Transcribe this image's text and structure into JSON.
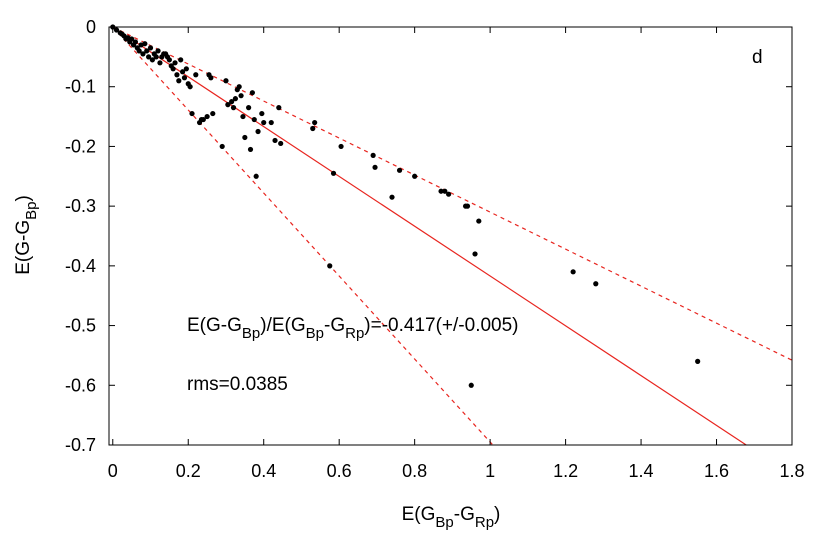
{
  "chart_data": {
    "type": "scatter",
    "panel_label": "d",
    "xlabel": {
      "base": "E(G",
      "sub1": "Bp",
      "mid": "-G",
      "sub2": "Rp",
      "end": ")"
    },
    "ylabel": {
      "base": "E(G-G",
      "sub1": "Bp",
      "end": ")"
    },
    "xlim": [
      -0.01,
      1.8
    ],
    "ylim": [
      -0.7,
      0
    ],
    "x_ticks": [
      0,
      0.2,
      0.4,
      0.6,
      0.8,
      1,
      1.2,
      1.4,
      1.6,
      1.8
    ],
    "y_ticks": [
      0,
      -0.1,
      -0.2,
      -0.3,
      -0.4,
      -0.5,
      -0.6,
      -0.7
    ],
    "grid": false,
    "annotations": {
      "fit": {
        "p1": "E(G-G",
        "s1": "Bp",
        "p2": ")/E(G",
        "s2": "Bp",
        "p3": "-G",
        "s3": "Rp",
        "p4": ")=-0.417(+/-0.005)"
      },
      "rms": "rms=0.0385"
    },
    "lines": [
      {
        "style": "solid",
        "color": "#e8251f",
        "slope": -0.417
      },
      {
        "style": "dashed",
        "color": "#e8251f",
        "slope": -0.31
      },
      {
        "style": "dashed",
        "color": "#e8251f",
        "slope": -0.695
      }
    ],
    "series": [
      {
        "color": "#000000",
        "points": [
          [
            0.0,
            0.0
          ],
          [
            0.01,
            -0.005
          ],
          [
            0.02,
            -0.01
          ],
          [
            0.025,
            -0.012
          ],
          [
            0.03,
            -0.015
          ],
          [
            0.035,
            -0.02
          ],
          [
            0.04,
            -0.018
          ],
          [
            0.045,
            -0.025
          ],
          [
            0.05,
            -0.02
          ],
          [
            0.055,
            -0.03
          ],
          [
            0.06,
            -0.025
          ],
          [
            0.065,
            -0.035
          ],
          [
            0.07,
            -0.04
          ],
          [
            0.075,
            -0.03
          ],
          [
            0.08,
            -0.045
          ],
          [
            0.085,
            -0.028
          ],
          [
            0.09,
            -0.04
          ],
          [
            0.095,
            -0.05
          ],
          [
            0.1,
            -0.035
          ],
          [
            0.105,
            -0.055
          ],
          [
            0.11,
            -0.045
          ],
          [
            0.115,
            -0.05
          ],
          [
            0.12,
            -0.04
          ],
          [
            0.125,
            -0.06
          ],
          [
            0.13,
            -0.05
          ],
          [
            0.135,
            -0.045
          ],
          [
            0.14,
            -0.045
          ],
          [
            0.145,
            -0.05
          ],
          [
            0.15,
            -0.055
          ],
          [
            0.155,
            -0.065
          ],
          [
            0.16,
            -0.07
          ],
          [
            0.165,
            -0.06
          ],
          [
            0.17,
            -0.08
          ],
          [
            0.175,
            -0.09
          ],
          [
            0.18,
            -0.055
          ],
          [
            0.185,
            -0.075
          ],
          [
            0.19,
            -0.085
          ],
          [
            0.195,
            -0.07
          ],
          [
            0.2,
            -0.095
          ],
          [
            0.205,
            -0.1
          ],
          [
            0.21,
            -0.145
          ],
          [
            0.22,
            -0.08
          ],
          [
            0.23,
            -0.16
          ],
          [
            0.235,
            -0.155
          ],
          [
            0.24,
            -0.155
          ],
          [
            0.25,
            -0.15
          ],
          [
            0.255,
            -0.08
          ],
          [
            0.26,
            -0.085
          ],
          [
            0.265,
            -0.145
          ],
          [
            0.29,
            -0.2
          ],
          [
            0.3,
            -0.09
          ],
          [
            0.305,
            -0.13
          ],
          [
            0.315,
            -0.125
          ],
          [
            0.32,
            -0.135
          ],
          [
            0.325,
            -0.12
          ],
          [
            0.33,
            -0.105
          ],
          [
            0.335,
            -0.1
          ],
          [
            0.34,
            -0.115
          ],
          [
            0.345,
            -0.15
          ],
          [
            0.35,
            -0.185
          ],
          [
            0.36,
            -0.135
          ],
          [
            0.365,
            -0.205
          ],
          [
            0.37,
            -0.11
          ],
          [
            0.375,
            -0.155
          ],
          [
            0.38,
            -0.25
          ],
          [
            0.385,
            -0.175
          ],
          [
            0.395,
            -0.145
          ],
          [
            0.4,
            -0.16
          ],
          [
            0.42,
            -0.16
          ],
          [
            0.43,
            -0.19
          ],
          [
            0.44,
            -0.135
          ],
          [
            0.445,
            -0.195
          ],
          [
            0.53,
            -0.17
          ],
          [
            0.535,
            -0.16
          ],
          [
            0.575,
            -0.4
          ],
          [
            0.585,
            -0.245
          ],
          [
            0.605,
            -0.2
          ],
          [
            0.69,
            -0.215
          ],
          [
            0.695,
            -0.235
          ],
          [
            0.74,
            -0.285
          ],
          [
            0.76,
            -0.24
          ],
          [
            0.8,
            -0.25
          ],
          [
            0.87,
            -0.275
          ],
          [
            0.88,
            -0.275
          ],
          [
            0.89,
            -0.28
          ],
          [
            0.935,
            -0.3
          ],
          [
            0.94,
            -0.3
          ],
          [
            0.95,
            -0.6
          ],
          [
            0.96,
            -0.38
          ],
          [
            0.97,
            -0.325
          ],
          [
            1.22,
            -0.41
          ],
          [
            1.28,
            -0.43
          ],
          [
            1.55,
            -0.56
          ]
        ]
      }
    ]
  }
}
